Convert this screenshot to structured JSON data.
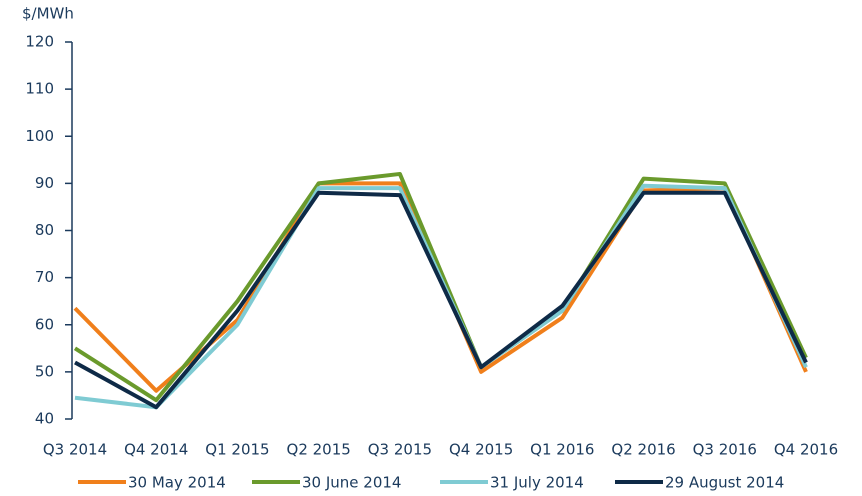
{
  "chart_data": {
    "type": "line",
    "y_label": "$/MWh",
    "categories": [
      "Q3 2014",
      "Q4 2014",
      "Q1 2015",
      "Q2 2015",
      "Q3 2015",
      "Q4 2015",
      "Q1 2016",
      "Q2 2016",
      "Q3 2016",
      "Q4 2016"
    ],
    "series": [
      {
        "name": "30 May 2014",
        "color": "#f07f1b",
        "values": [
          63.5,
          46,
          61,
          90,
          90,
          50,
          61.5,
          88.5,
          89,
          50
        ]
      },
      {
        "name": "30 June 2014",
        "color": "#6a9a2c",
        "values": [
          55,
          44,
          65,
          90,
          92,
          51,
          63,
          91,
          90,
          53
        ]
      },
      {
        "name": "31 July 2014",
        "color": "#7fcbd3",
        "values": [
          44.5,
          42.5,
          60,
          89,
          89,
          51,
          63,
          89.5,
          89,
          51
        ]
      },
      {
        "name": "29 August 2014",
        "color": "#0e2a47",
        "values": [
          52,
          42.5,
          63,
          88,
          87.5,
          51,
          64,
          88,
          88,
          52
        ]
      }
    ],
    "ylim": [
      40,
      120
    ],
    "yticks": [
      40,
      50,
      60,
      70,
      80,
      90,
      100,
      110,
      120
    ],
    "legend": "bottom"
  }
}
